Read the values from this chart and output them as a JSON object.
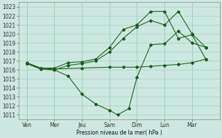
{
  "title": "",
  "xlabel": "Pression niveau de la mer( hPa )",
  "ylabel": "",
  "bg_color": "#cce8e0",
  "grid_color": "#99ccbb",
  "line_color": "#1a5e20",
  "ylim": [
    1010.5,
    1023.5
  ],
  "yticks": [
    1011,
    1012,
    1013,
    1014,
    1015,
    1016,
    1017,
    1018,
    1019,
    1020,
    1021,
    1022,
    1023
  ],
  "day_labels": [
    "Ven",
    "Mer",
    "Jeu",
    "Sam",
    "Dim",
    "Lun",
    "Mar"
  ],
  "day_positions": [
    0,
    1,
    2,
    3,
    4,
    5,
    6
  ],
  "xlim": [
    -0.3,
    7.0
  ],
  "series": [
    {
      "x": [
        0.0,
        0.5,
        1.0,
        1.5,
        2.0,
        2.5,
        3.0,
        3.3,
        3.7,
        4.0,
        4.5,
        5.0,
        5.5,
        6.0,
        6.5
      ],
      "y": [
        1016.7,
        1016.1,
        1016.0,
        1015.3,
        1013.3,
        1012.2,
        1011.5,
        1011.0,
        1011.7,
        1015.2,
        1018.8,
        1018.9,
        1020.3,
        1019.0,
        1018.5
      ]
    },
    {
      "x": [
        0.0,
        0.5,
        1.0,
        1.5,
        2.0,
        2.5,
        3.0,
        3.5,
        4.0,
        4.5,
        5.0,
        5.5,
        6.0,
        6.5
      ],
      "y": [
        1016.8,
        1016.2,
        1016.2,
        1016.8,
        1016.9,
        1017.2,
        1018.5,
        1020.5,
        1021.0,
        1022.5,
        1022.5,
        1019.5,
        1019.9,
        1017.2
      ]
    },
    {
      "x": [
        0.0,
        0.5,
        1.0,
        1.5,
        2.0,
        2.5,
        3.0,
        3.5,
        4.0,
        4.5,
        5.0,
        5.5,
        6.0,
        6.5
      ],
      "y": [
        1016.7,
        1016.1,
        1016.0,
        1016.5,
        1016.7,
        1017.0,
        1018.0,
        1019.5,
        1020.8,
        1021.5,
        1021.0,
        1022.5,
        1020.0,
        1018.5
      ]
    },
    {
      "x": [
        0.0,
        0.5,
        1.0,
        2.0,
        3.0,
        3.5,
        4.0,
        4.5,
        5.0,
        5.5,
        6.0,
        6.5
      ],
      "y": [
        1016.7,
        1016.2,
        1016.1,
        1016.2,
        1016.3,
        1016.3,
        1016.3,
        1016.4,
        1016.5,
        1016.6,
        1016.8,
        1017.2
      ]
    }
  ]
}
